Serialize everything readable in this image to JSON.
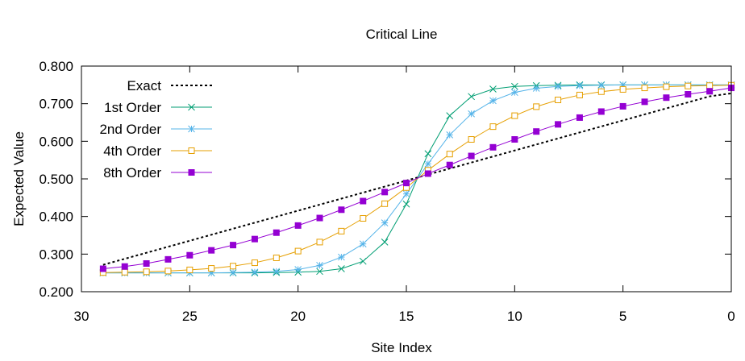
{
  "chart_data": {
    "type": "line",
    "title": "Critical Line",
    "xlabel": "Site Index",
    "ylabel": "Expected Value",
    "xlim": [
      30,
      0
    ],
    "ylim": [
      0.2,
      0.8
    ],
    "x_ticks": [
      30,
      25,
      20,
      15,
      10,
      5,
      0
    ],
    "y_ticks": [
      0.2,
      0.3,
      0.4,
      0.5,
      0.6,
      0.7,
      0.8
    ],
    "x_tick_labels": [
      "30",
      "25",
      "20",
      "15",
      "10",
      "5",
      "0"
    ],
    "y_tick_labels": [
      "0.200",
      "0.300",
      "0.400",
      "0.500",
      "0.600",
      "0.700",
      "0.800"
    ],
    "legend_position": "top-left",
    "x": [
      29,
      28,
      27,
      26,
      25,
      24,
      23,
      22,
      21,
      20,
      19,
      18,
      17,
      16,
      15,
      14,
      13,
      12,
      11,
      10,
      9,
      8,
      7,
      6,
      5,
      4,
      3,
      2,
      1,
      0
    ],
    "series": [
      {
        "name": "Exact",
        "color": "#000000",
        "style": "dotted",
        "marker": "none",
        "values": [
          0.2715,
          0.2875,
          0.3035,
          0.3195,
          0.3355,
          0.3515,
          0.3675,
          0.3835,
          0.3995,
          0.4155,
          0.4315,
          0.4475,
          0.4635,
          0.4795,
          0.4955,
          0.5115,
          0.5275,
          0.5435,
          0.5595,
          0.5755,
          0.5915,
          0.6075,
          0.6235,
          0.6395,
          0.6555,
          0.6715,
          0.6875,
          0.7035,
          0.7195,
          0.7275
        ]
      },
      {
        "name": "1st Order",
        "color": "#009e73",
        "style": "solid",
        "marker": "x",
        "values": [
          0.25,
          0.25,
          0.25,
          0.25,
          0.25,
          0.25,
          0.25,
          0.25,
          0.251,
          0.252,
          0.254,
          0.261,
          0.281,
          0.332,
          0.433,
          0.567,
          0.668,
          0.719,
          0.739,
          0.746,
          0.748,
          0.749,
          0.75,
          0.75,
          0.75,
          0.75,
          0.75,
          0.75,
          0.75,
          0.75
        ]
      },
      {
        "name": "2nd Order",
        "color": "#56b4e9",
        "style": "solid",
        "marker": "star",
        "values": [
          0.25,
          0.25,
          0.25,
          0.25,
          0.25,
          0.25,
          0.251,
          0.252,
          0.254,
          0.259,
          0.27,
          0.292,
          0.327,
          0.383,
          0.46,
          0.54,
          0.617,
          0.673,
          0.708,
          0.73,
          0.741,
          0.746,
          0.748,
          0.749,
          0.75,
          0.75,
          0.75,
          0.75,
          0.75,
          0.75
        ]
      },
      {
        "name": "4th Order",
        "color": "#e69f00",
        "style": "solid",
        "marker": "square",
        "values": [
          0.251,
          0.252,
          0.253,
          0.255,
          0.258,
          0.262,
          0.268,
          0.277,
          0.29,
          0.308,
          0.332,
          0.361,
          0.395,
          0.434,
          0.477,
          0.523,
          0.566,
          0.605,
          0.639,
          0.668,
          0.692,
          0.71,
          0.723,
          0.732,
          0.738,
          0.742,
          0.745,
          0.747,
          0.748,
          0.749
        ]
      },
      {
        "name": "8th Order",
        "color": "#9400d3",
        "style": "solid",
        "marker": "filled-square",
        "values": [
          0.261,
          0.267,
          0.275,
          0.286,
          0.297,
          0.31,
          0.324,
          0.34,
          0.357,
          0.376,
          0.396,
          0.418,
          0.441,
          0.465,
          0.489,
          0.514,
          0.537,
          0.561,
          0.584,
          0.605,
          0.626,
          0.645,
          0.663,
          0.679,
          0.693,
          0.705,
          0.716,
          0.725,
          0.733,
          0.742
        ]
      }
    ]
  }
}
